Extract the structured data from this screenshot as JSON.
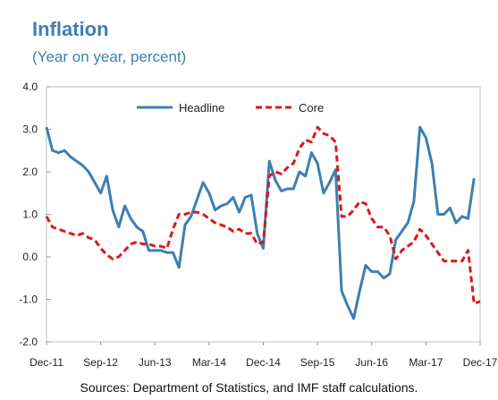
{
  "header": {
    "title": "Inflation",
    "subtitle": "(Year on year, percent)"
  },
  "footer": {
    "source": "Sources: Department of Statistics, and IMF staff calculations."
  },
  "chart_data": {
    "type": "line",
    "title": "Inflation",
    "subtitle": "(Year on year, percent)",
    "ylim": [
      -2.0,
      4.0
    ],
    "y_ticks": [
      "4.0",
      "3.0",
      "2.0",
      "1.0",
      "0.0",
      "-1.0",
      "-2.0"
    ],
    "x_ticks": [
      "Dec-11",
      "Sep-12",
      "Jun-13",
      "Mar-14",
      "Dec-14",
      "Sep-15",
      "Jun-16",
      "Mar-17",
      "Dec-17"
    ],
    "x": [
      "Dec-11",
      "Jan-12",
      "Feb-12",
      "Mar-12",
      "Apr-12",
      "May-12",
      "Jun-12",
      "Jul-12",
      "Aug-12",
      "Sep-12",
      "Oct-12",
      "Nov-12",
      "Dec-12",
      "Jan-13",
      "Feb-13",
      "Mar-13",
      "Apr-13",
      "May-13",
      "Jun-13",
      "Jul-13",
      "Aug-13",
      "Sep-13",
      "Oct-13",
      "Nov-13",
      "Dec-13",
      "Jan-14",
      "Feb-14",
      "Mar-14",
      "Apr-14",
      "May-14",
      "Jun-14",
      "Jul-14",
      "Aug-14",
      "Sep-14",
      "Oct-14",
      "Nov-14",
      "Dec-14",
      "Jan-15",
      "Feb-15",
      "Mar-15",
      "Apr-15",
      "May-15",
      "Jun-15",
      "Jul-15",
      "Aug-15",
      "Sep-15",
      "Oct-15",
      "Nov-15",
      "Dec-15",
      "Jan-16",
      "Feb-16",
      "Mar-16",
      "Apr-16",
      "May-16",
      "Jun-16",
      "Jul-16",
      "Aug-16",
      "Sep-16",
      "Oct-16",
      "Nov-16",
      "Dec-16",
      "Jan-17",
      "Feb-17",
      "Mar-17",
      "Apr-17",
      "May-17",
      "Jun-17",
      "Jul-17",
      "Aug-17",
      "Sep-17",
      "Oct-17",
      "Nov-17",
      "Dec-17"
    ],
    "legend_position": "top-center",
    "grid": false,
    "series": [
      {
        "name": "Headline",
        "color": "#3d7fb0",
        "style": "solid",
        "values": [
          3.05,
          2.5,
          2.45,
          2.5,
          2.35,
          2.25,
          2.15,
          2.0,
          1.75,
          1.5,
          1.9,
          1.1,
          0.7,
          1.2,
          0.9,
          0.7,
          0.6,
          0.15,
          0.15,
          0.15,
          0.1,
          0.1,
          -0.25,
          0.75,
          0.95,
          1.35,
          1.75,
          1.5,
          1.1,
          1.2,
          1.25,
          1.4,
          1.05,
          1.4,
          1.45,
          0.55,
          0.2,
          2.25,
          1.8,
          1.55,
          1.6,
          1.6,
          2.0,
          1.9,
          2.45,
          2.2,
          1.5,
          1.75,
          2.05,
          -0.8,
          -1.15,
          -1.45,
          -0.8,
          -0.2,
          -0.35,
          -0.35,
          -0.5,
          -0.4,
          0.4,
          0.6,
          0.8,
          1.3,
          3.05,
          2.8,
          2.2,
          1.0,
          1.0,
          1.15,
          0.8,
          0.95,
          0.9,
          1.85,
          null
        ]
      },
      {
        "name": "Core",
        "color": "#d7191c",
        "style": "dashed",
        "values": [
          0.95,
          0.7,
          0.65,
          0.6,
          0.55,
          0.5,
          0.55,
          0.45,
          0.4,
          0.2,
          0.05,
          -0.05,
          0.0,
          0.15,
          0.3,
          0.35,
          0.3,
          0.3,
          0.25,
          0.25,
          0.2,
          0.65,
          1.0,
          1.0,
          1.05,
          1.05,
          1.0,
          0.9,
          0.8,
          0.75,
          0.7,
          0.6,
          0.65,
          0.55,
          0.55,
          0.3,
          0.35,
          1.9,
          2.0,
          1.95,
          2.1,
          2.2,
          2.55,
          2.75,
          2.7,
          3.05,
          2.9,
          2.85,
          2.7,
          0.95,
          0.95,
          1.1,
          1.3,
          1.25,
          0.9,
          0.7,
          0.7,
          0.5,
          -0.05,
          0.15,
          0.25,
          0.35,
          0.65,
          0.5,
          0.3,
          0.1,
          -0.1,
          -0.1,
          -0.1,
          -0.1,
          0.15,
          -1.1,
          -1.05
        ]
      }
    ]
  }
}
